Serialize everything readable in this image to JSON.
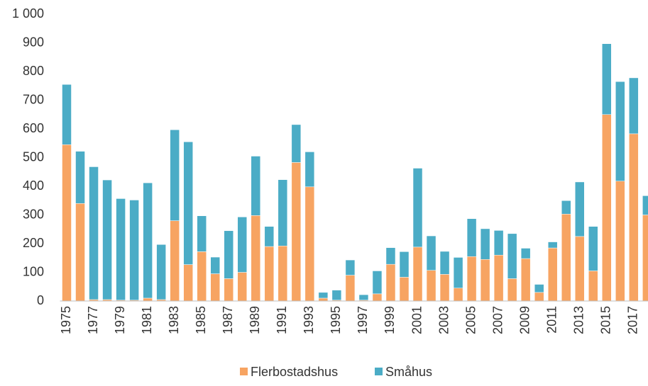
{
  "chart_data": {
    "type": "stacked_bar",
    "categories": [
      "1975",
      null,
      "1977",
      null,
      "1979",
      null,
      "1981",
      null,
      "1983",
      null,
      "1985",
      null,
      "1987",
      null,
      "1989",
      null,
      "1991",
      null,
      "1993",
      null,
      "1995",
      null,
      "1997",
      null,
      "1999",
      null,
      "2001",
      null,
      "2003",
      null,
      "2005",
      null,
      "2007",
      null,
      "2009",
      null,
      "2011",
      null,
      "2013",
      null,
      "2015",
      null,
      "2017",
      null
    ],
    "series": [
      {
        "name": "Flerbostadshus",
        "color": "#f7a462",
        "values": [
          545,
          340,
          5,
          5,
          3,
          3,
          10,
          5,
          280,
          127,
          172,
          95,
          78,
          100,
          298,
          190,
          192,
          483,
          398,
          10,
          3,
          90,
          3,
          25,
          128,
          83,
          188,
          107,
          93,
          45,
          155,
          145,
          160,
          78,
          148,
          30,
          185,
          303,
          225,
          105,
          650,
          418,
          583,
          300
        ]
      },
      {
        "name": "Småhus",
        "color": "#4bacc6",
        "values": [
          210,
          182,
          463,
          417,
          354,
          349,
          402,
          192,
          317,
          428,
          125,
          58,
          167,
          193,
          207,
          70,
          231,
          132,
          122,
          20,
          35,
          53,
          19,
          80,
          58,
          89,
          275,
          120,
          80,
          107,
          132,
          107,
          86,
          157,
          36,
          28,
          21,
          47,
          190,
          155,
          247,
          347,
          195,
          67
        ]
      }
    ],
    "ylim": [
      0,
      1000
    ],
    "yticks": [
      0,
      100,
      200,
      300,
      400,
      500,
      600,
      700,
      800,
      900,
      {
        "value": 1000,
        "label": "1 000"
      }
    ]
  }
}
